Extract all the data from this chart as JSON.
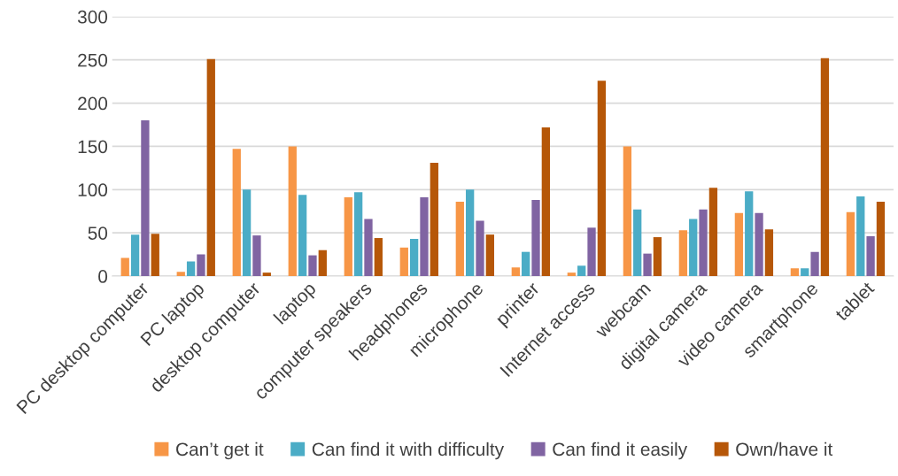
{
  "chart_data": {
    "type": "bar",
    "categories": [
      "PC desktop computer",
      "PC laptop",
      "desktop computer",
      "laptop",
      "computer speakers",
      "headphones",
      "microphone",
      "printer",
      "Internet access",
      "webcam",
      "digital camera",
      "video camera",
      "smartphone",
      "tablet"
    ],
    "series": [
      {
        "name": "Can’t get it",
        "color": "#f79646",
        "values": [
          21,
          5,
          147,
          150,
          91,
          33,
          86,
          10,
          4,
          150,
          53,
          73,
          9,
          74
        ]
      },
      {
        "name": "Can find it with difficulty",
        "color": "#4bacc6",
        "values": [
          48,
          17,
          100,
          94,
          97,
          43,
          100,
          28,
          12,
          77,
          66,
          98,
          9,
          92
        ]
      },
      {
        "name": "Can find it easily",
        "color": "#8064a2",
        "values": [
          180,
          25,
          47,
          24,
          66,
          91,
          64,
          88,
          56,
          26,
          77,
          73,
          28,
          46
        ]
      },
      {
        "name": "Own/have it",
        "color": "#b65708",
        "values": [
          49,
          251,
          4,
          30,
          44,
          131,
          48,
          172,
          226,
          45,
          102,
          54,
          252,
          86
        ]
      }
    ],
    "ylim": [
      0,
      300
    ],
    "yticks": [
      0,
      50,
      100,
      150,
      200,
      250,
      300
    ],
    "grid": "y",
    "legend": "bottom"
  }
}
